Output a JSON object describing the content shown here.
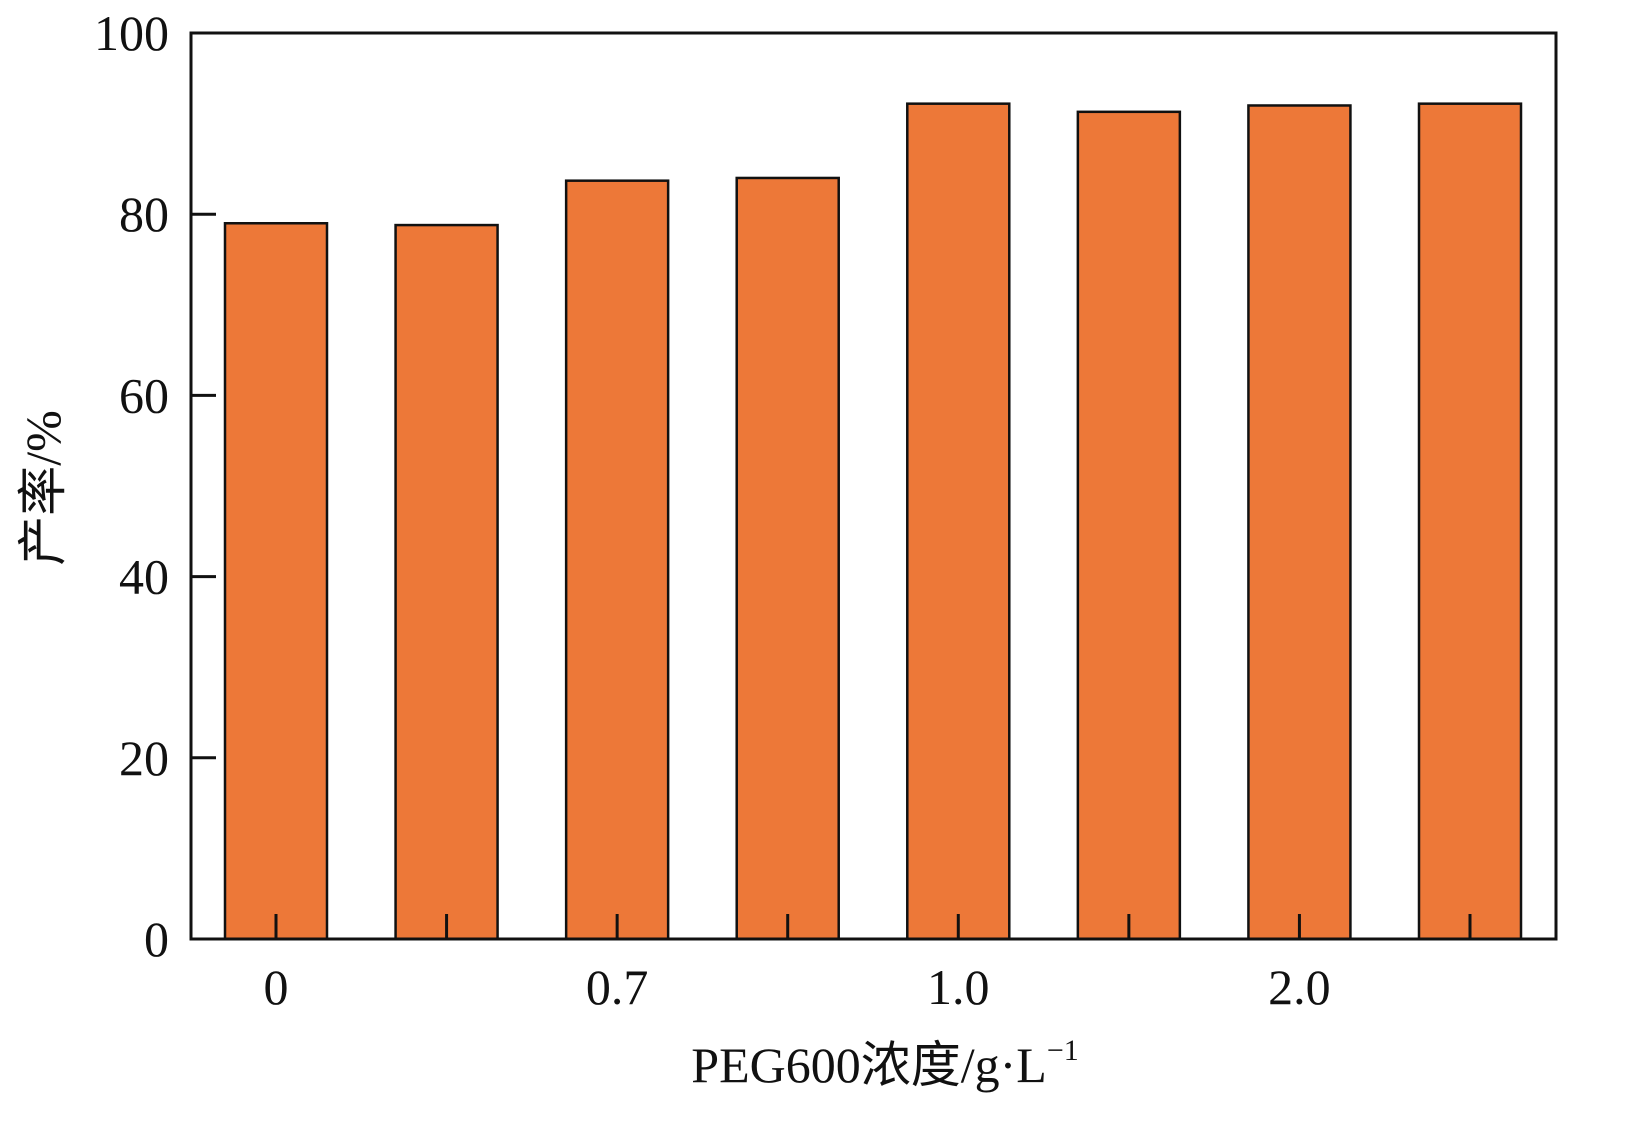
{
  "chart_data": {
    "type": "bar",
    "values": [
      79,
      78.8,
      83.7,
      84,
      92.2,
      91.3,
      92,
      92.2
    ],
    "x_tick_labels": [
      "0",
      "",
      "0.7",
      "",
      "1.0",
      "",
      "2.0",
      ""
    ],
    "y_ticks": [
      0,
      20,
      40,
      60,
      80,
      100
    ],
    "ylim": [
      0,
      100
    ],
    "xlabel": "PEG600浓度/g·L",
    "xlabel_superscript": "−1",
    "ylabel": "产率/%",
    "bar_color": "#ED7838",
    "grid": false,
    "legend": "none"
  }
}
